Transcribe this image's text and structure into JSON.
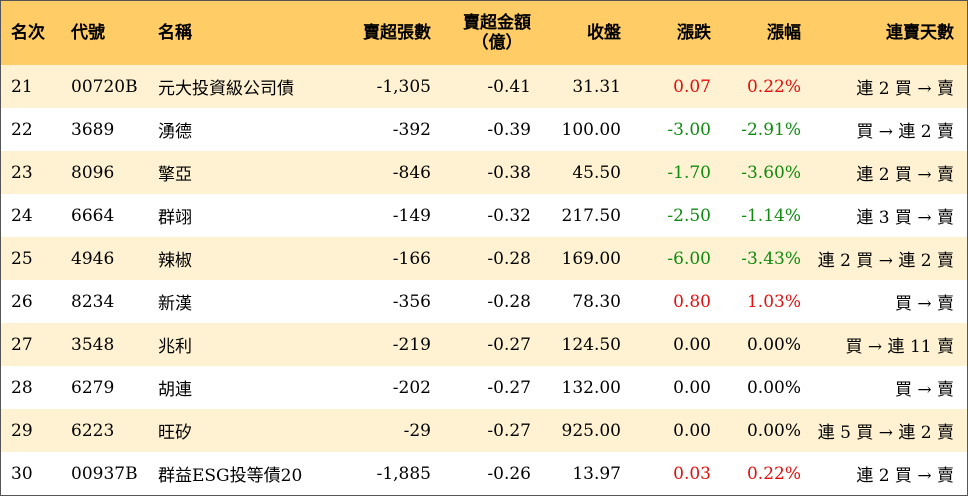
{
  "headers": {
    "rank": "名次",
    "code": "代號",
    "name": "名稱",
    "net_sell_lots": "賣超張數",
    "net_sell_amount_line1": "賣超金額",
    "net_sell_amount_line2": "（億）",
    "close": "收盤",
    "change": "漲跌",
    "change_pct": "漲幅",
    "streak": "連賣天數"
  },
  "colors": {
    "header_bg": "#ffcc66",
    "odd_row_bg": "#fff2d2",
    "even_row_bg": "#ffffff",
    "up": "#e01010",
    "down": "#108a10",
    "flat": "#000000"
  },
  "rows": [
    {
      "rank": "21",
      "code": "00720B",
      "name": "元大投資級公司債",
      "lots": "-1,305",
      "amount": "-0.41",
      "close": "31.31",
      "change": "0.07",
      "pct": "0.22%",
      "dir": "up",
      "streak": "連 2 買 → 賣"
    },
    {
      "rank": "22",
      "code": "3689",
      "name": "湧德",
      "lots": "-392",
      "amount": "-0.39",
      "close": "100.00",
      "change": "-3.00",
      "pct": "-2.91%",
      "dir": "down",
      "streak": "買 → 連 2 賣"
    },
    {
      "rank": "23",
      "code": "8096",
      "name": "擎亞",
      "lots": "-846",
      "amount": "-0.38",
      "close": "45.50",
      "change": "-1.70",
      "pct": "-3.60%",
      "dir": "down",
      "streak": "連 2 買 → 賣"
    },
    {
      "rank": "24",
      "code": "6664",
      "name": "群翊",
      "lots": "-149",
      "amount": "-0.32",
      "close": "217.50",
      "change": "-2.50",
      "pct": "-1.14%",
      "dir": "down",
      "streak": "連 3 買 → 賣"
    },
    {
      "rank": "25",
      "code": "4946",
      "name": "辣椒",
      "lots": "-166",
      "amount": "-0.28",
      "close": "169.00",
      "change": "-6.00",
      "pct": "-3.43%",
      "dir": "down",
      "streak": "連 2 買 → 連 2 賣"
    },
    {
      "rank": "26",
      "code": "8234",
      "name": "新漢",
      "lots": "-356",
      "amount": "-0.28",
      "close": "78.30",
      "change": "0.80",
      "pct": "1.03%",
      "dir": "up",
      "streak": "買 → 賣"
    },
    {
      "rank": "27",
      "code": "3548",
      "name": "兆利",
      "lots": "-219",
      "amount": "-0.27",
      "close": "124.50",
      "change": "0.00",
      "pct": "0.00%",
      "dir": "flat",
      "streak": "買 → 連 11 賣"
    },
    {
      "rank": "28",
      "code": "6279",
      "name": "胡連",
      "lots": "-202",
      "amount": "-0.27",
      "close": "132.00",
      "change": "0.00",
      "pct": "0.00%",
      "dir": "flat",
      "streak": "買 → 賣"
    },
    {
      "rank": "29",
      "code": "6223",
      "name": "旺矽",
      "lots": "-29",
      "amount": "-0.27",
      "close": "925.00",
      "change": "0.00",
      "pct": "0.00%",
      "dir": "flat",
      "streak": "連 5 買 → 連 2 賣"
    },
    {
      "rank": "30",
      "code": "00937B",
      "name": "群益ESG投等債20",
      "lots": "-1,885",
      "amount": "-0.26",
      "close": "13.97",
      "change": "0.03",
      "pct": "0.22%",
      "dir": "up",
      "streak": "連 2 買 → 賣"
    }
  ]
}
